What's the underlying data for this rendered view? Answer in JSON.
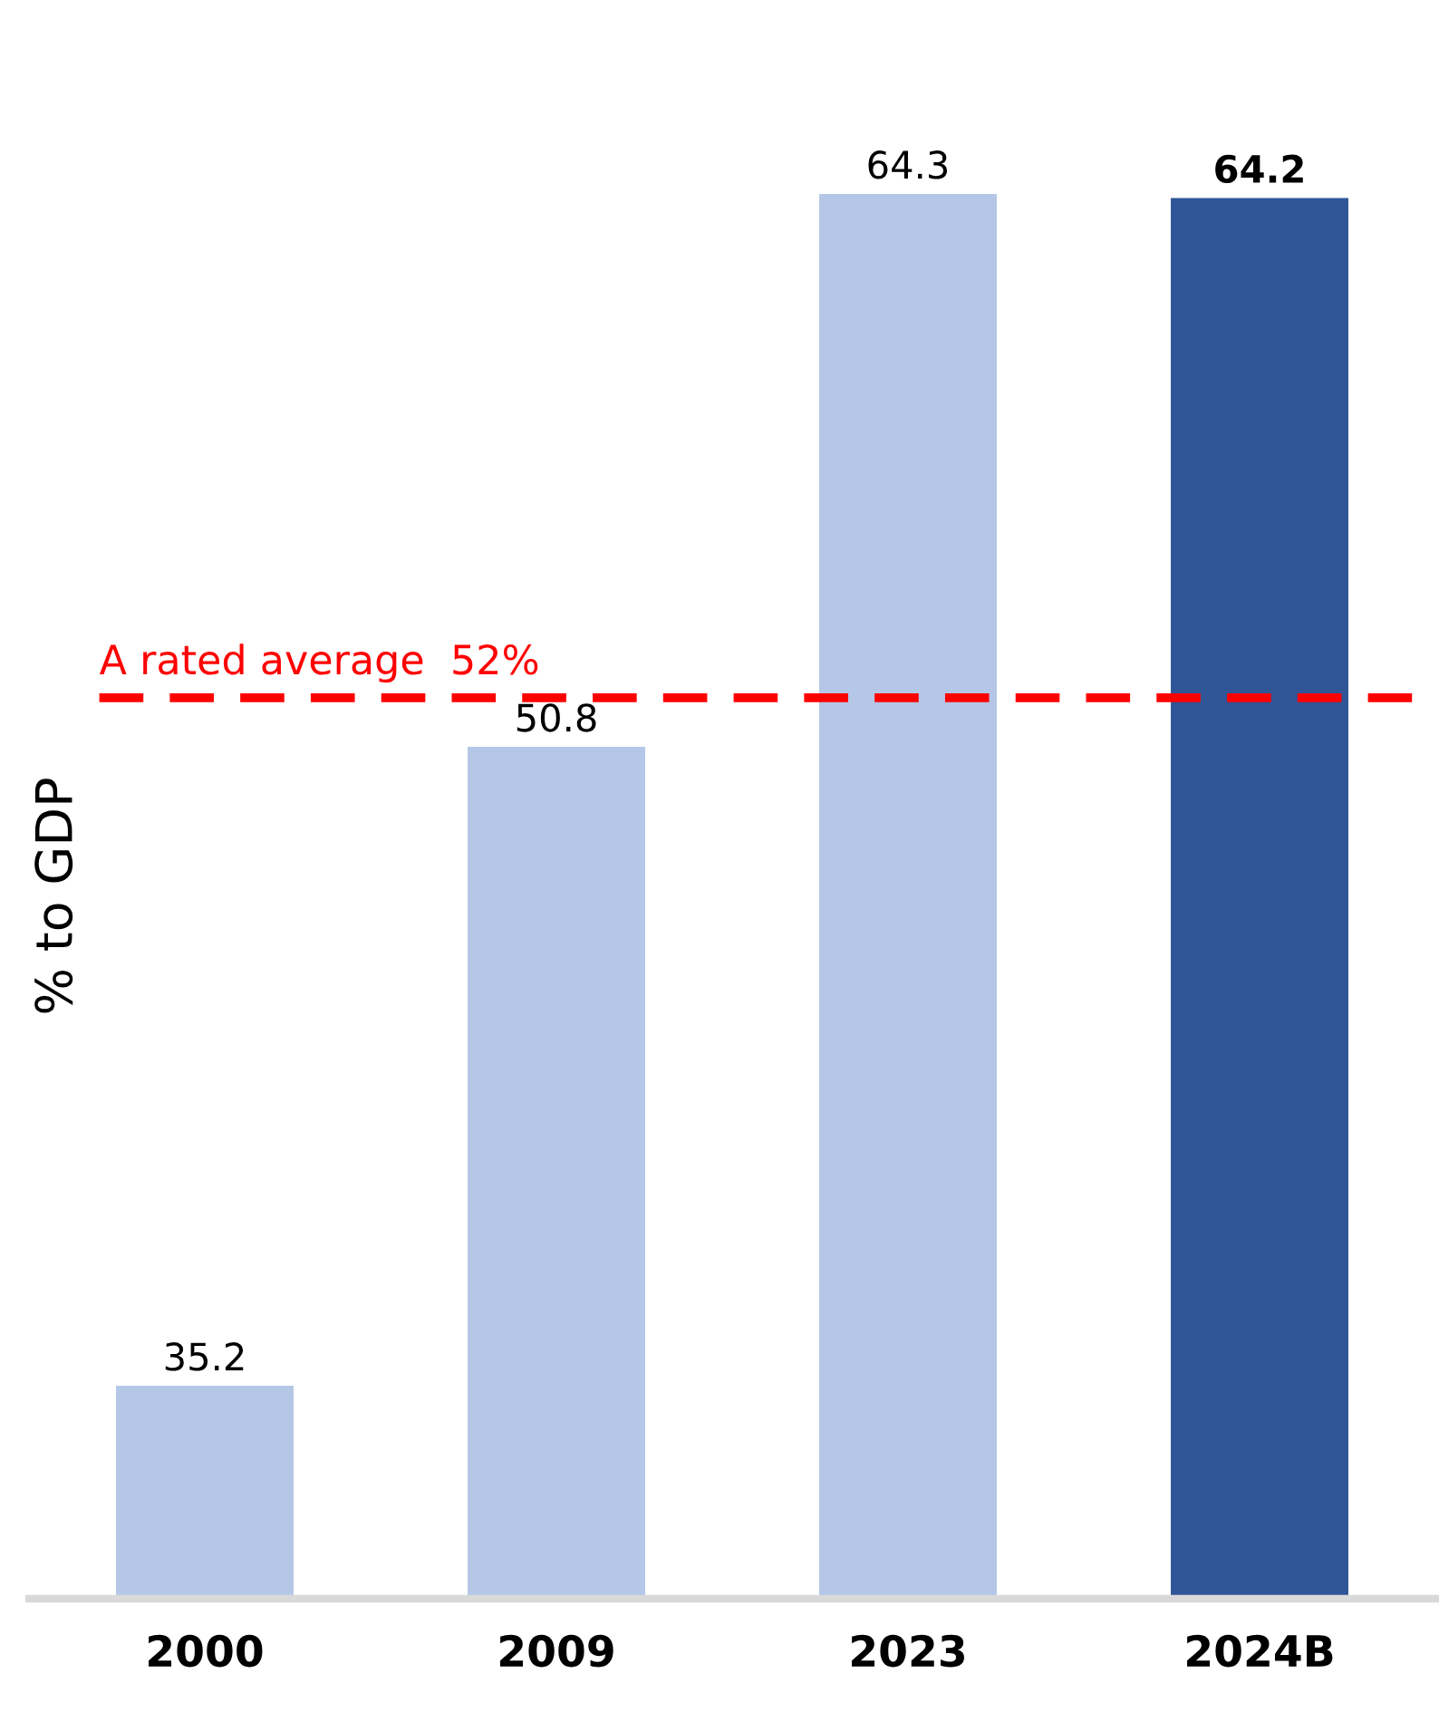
{
  "chart_data": {
    "type": "bar",
    "ylabel": "% to GDP",
    "categories": [
      "2000",
      "2009",
      "2023",
      "2024B"
    ],
    "values": [
      35.2,
      50.8,
      64.3,
      64.2
    ],
    "colors": [
      "#b4c7e7",
      "#b4c7e7",
      "#b4c7e7",
      "#2f5597"
    ],
    "ylim": [
      30,
      64.3
    ],
    "data_labels": true,
    "ref_lines": [
      {
        "axis": "y",
        "value": 52,
        "label": "A rated average  52%",
        "color": "#ff0000",
        "line_style": "dashed"
      }
    ],
    "tick_labels": "x",
    "grid": false,
    "legend": false
  }
}
